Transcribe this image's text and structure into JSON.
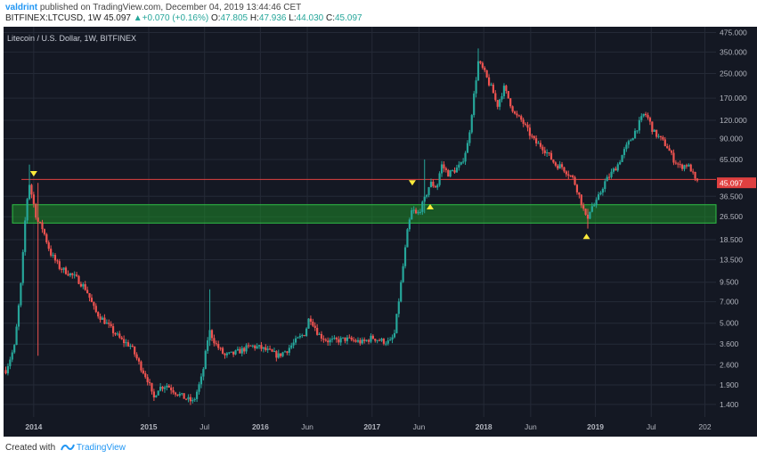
{
  "header": {
    "author": "valdrint",
    "published_text": "published on TradingView.com, December 04, 2019 13:44:46 CET",
    "symbol": "BITFINEX:LTCUSD, 1W",
    "price_now": "45.097",
    "change_arrow": "▲",
    "change": "+0.070 (+0.16%)",
    "o_label": "O:",
    "o_val": "47.805",
    "h_label": "H:",
    "h_val": "47.936",
    "l_label": "L:",
    "l_val": "44.030",
    "c_label": "C:",
    "c_val": "45.097"
  },
  "footer": {
    "created_with": "Created with",
    "brand": "TradingView"
  },
  "colors": {
    "background": "#141823",
    "grid": "#252a37",
    "up": "#26a69a",
    "down": "#ef5350",
    "zone": "#1e8c2a",
    "marker": "#ffeb3b",
    "price_line": "#e04040"
  },
  "chart_data": {
    "type": "candlestick",
    "title": "Litecoin / U.S. Dollar, 1W, BITFINEX",
    "scale": "log",
    "ylim": [
      1.15,
      520
    ],
    "y_ticks": [
      "475.000",
      "350.000",
      "250.000",
      "170.000",
      "120.000",
      "90.000",
      "65.000",
      "45.097",
      "36.500",
      "26.500",
      "18.500",
      "13.500",
      "9.500",
      "7.000",
      "5.000",
      "3.600",
      "2.600",
      "1.900",
      "1.400"
    ],
    "x_ticks": [
      "2014",
      "2015",
      "Jul",
      "2016",
      "Jun",
      "2017",
      "Jun",
      "2018",
      "Jun",
      "2019",
      "Jul",
      "202"
    ],
    "last_price": 45.097,
    "support_zone": [
      24,
      32
    ],
    "resistance_line": 47.5,
    "close_path": [
      [
        2013.72,
        2.4
      ],
      [
        2013.8,
        3.5
      ],
      [
        2013.86,
        10
      ],
      [
        2013.9,
        30
      ],
      [
        2013.93,
        45
      ],
      [
        2014.0,
        25
      ],
      [
        2014.05,
        22
      ],
      [
        2014.12,
        15
      ],
      [
        2014.2,
        12
      ],
      [
        2014.28,
        11
      ],
      [
        2014.36,
        10
      ],
      [
        2014.44,
        8.5
      ],
      [
        2014.52,
        6
      ],
      [
        2014.6,
        5.2
      ],
      [
        2014.68,
        4.4
      ],
      [
        2014.76,
        3.8
      ],
      [
        2014.84,
        3.5
      ],
      [
        2014.92,
        2.6
      ],
      [
        2015.0,
        2.0
      ],
      [
        2015.04,
        1.5
      ],
      [
        2015.08,
        1.8
      ],
      [
        2015.16,
        1.9
      ],
      [
        2015.24,
        1.7
      ],
      [
        2015.32,
        1.55
      ],
      [
        2015.4,
        1.45
      ],
      [
        2015.48,
        2.2
      ],
      [
        2015.54,
        4.5
      ],
      [
        2015.6,
        3.6
      ],
      [
        2015.68,
        3.0
      ],
      [
        2015.76,
        3.1
      ],
      [
        2015.84,
        3.3
      ],
      [
        2015.92,
        3.5
      ],
      [
        2016.0,
        3.4
      ],
      [
        2016.08,
        3.2
      ],
      [
        2016.16,
        3.0
      ],
      [
        2016.24,
        3.3
      ],
      [
        2016.32,
        3.8
      ],
      [
        2016.4,
        4.3
      ],
      [
        2016.44,
        5.6
      ],
      [
        2016.52,
        4.2
      ],
      [
        2016.6,
        3.8
      ],
      [
        2016.68,
        3.8
      ],
      [
        2016.76,
        3.9
      ],
      [
        2016.84,
        3.8
      ],
      [
        2016.92,
        3.7
      ],
      [
        2017.0,
        4.0
      ],
      [
        2017.08,
        3.8
      ],
      [
        2017.16,
        3.7
      ],
      [
        2017.2,
        4.2
      ],
      [
        2017.26,
        9.5
      ],
      [
        2017.32,
        22
      ],
      [
        2017.36,
        30
      ],
      [
        2017.4,
        27
      ],
      [
        2017.46,
        33
      ],
      [
        2017.52,
        45
      ],
      [
        2017.58,
        42
      ],
      [
        2017.62,
        60
      ],
      [
        2017.68,
        52
      ],
      [
        2017.74,
        55
      ],
      [
        2017.8,
        60
      ],
      [
        2017.86,
        85
      ],
      [
        2017.9,
        150
      ],
      [
        2017.95,
        300
      ],
      [
        2018.0,
        260
      ],
      [
        2018.04,
        220
      ],
      [
        2018.08,
        190
      ],
      [
        2018.12,
        150
      ],
      [
        2018.18,
        200
      ],
      [
        2018.22,
        170
      ],
      [
        2018.28,
        130
      ],
      [
        2018.34,
        120
      ],
      [
        2018.4,
        100
      ],
      [
        2018.46,
        85
      ],
      [
        2018.52,
        80
      ],
      [
        2018.58,
        70
      ],
      [
        2018.64,
        60
      ],
      [
        2018.7,
        58
      ],
      [
        2018.76,
        52
      ],
      [
        2018.8,
        48
      ],
      [
        2018.84,
        40
      ],
      [
        2018.88,
        32
      ],
      [
        2018.92,
        25
      ],
      [
        2018.96,
        31
      ],
      [
        2019.0,
        32
      ],
      [
        2019.04,
        38
      ],
      [
        2019.08,
        45
      ],
      [
        2019.14,
        52
      ],
      [
        2019.2,
        60
      ],
      [
        2019.26,
        75
      ],
      [
        2019.32,
        90
      ],
      [
        2019.38,
        110
      ],
      [
        2019.44,
        135
      ],
      [
        2019.48,
        120
      ],
      [
        2019.52,
        100
      ],
      [
        2019.58,
        90
      ],
      [
        2019.64,
        80
      ],
      [
        2019.7,
        65
      ],
      [
        2019.76,
        58
      ],
      [
        2019.82,
        60
      ],
      [
        2019.86,
        55
      ],
      [
        2019.9,
        45
      ],
      [
        2019.93,
        45.1
      ]
    ],
    "wicks": [
      {
        "x": 2013.93,
        "high": 60,
        "low": 38
      },
      {
        "x": 2014.0,
        "high": 45,
        "low": 3.0
      },
      {
        "x": 2015.54,
        "high": 8.5,
        "low": 3.5
      },
      {
        "x": 2017.46,
        "high": 65,
        "low": 28
      },
      {
        "x": 2017.95,
        "high": 370,
        "low": 260
      },
      {
        "x": 2018.92,
        "high": 30,
        "low": 22
      }
    ],
    "markers": [
      {
        "x": 2013.97,
        "y": 52,
        "dir": "down"
      },
      {
        "x": 2017.36,
        "y": 45,
        "dir": "down"
      },
      {
        "x": 2017.52,
        "y": 31,
        "dir": "up"
      },
      {
        "x": 2018.92,
        "y": 19.5,
        "dir": "up"
      }
    ]
  }
}
